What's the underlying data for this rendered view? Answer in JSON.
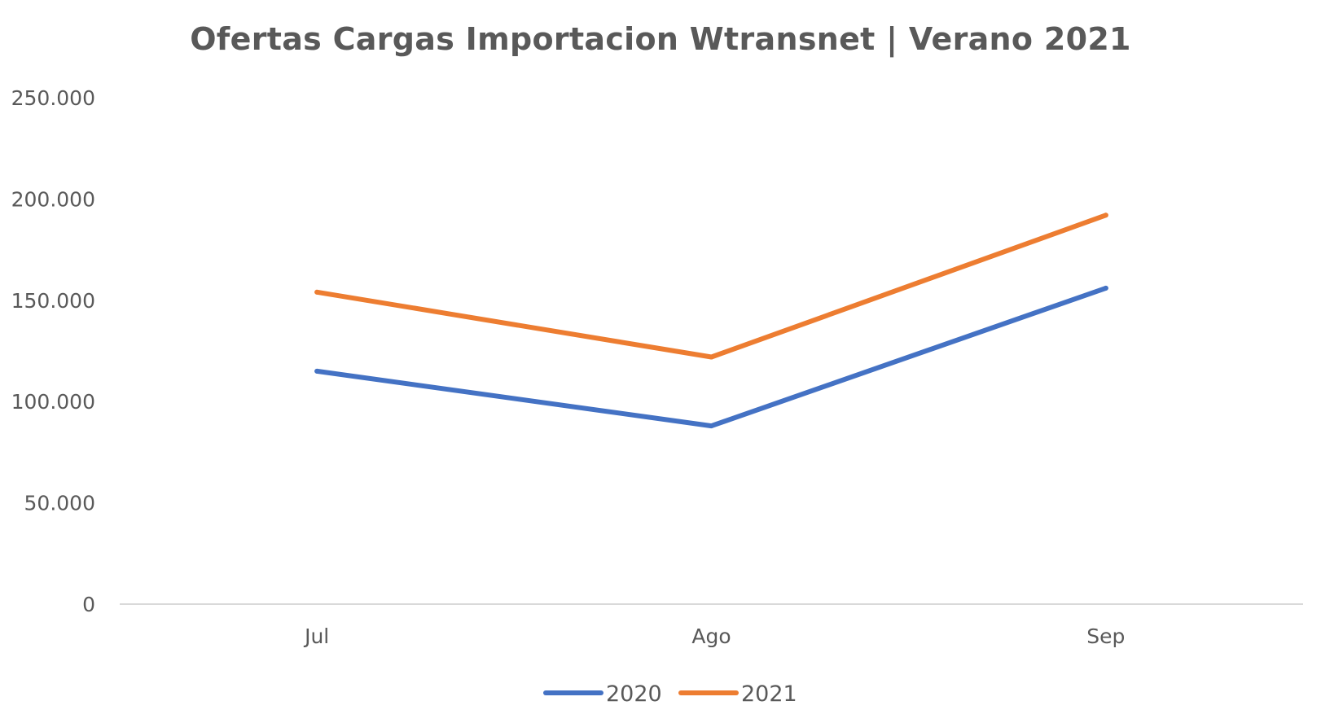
{
  "chart_data": {
    "type": "line",
    "title": "Ofertas Cargas Importacion Wtransnet | Verano 2021",
    "xlabel": "",
    "ylabel": "",
    "categories": [
      "Jul",
      "Ago",
      "Sep"
    ],
    "ylim": [
      0,
      250000
    ],
    "yticks": [
      0,
      50000,
      100000,
      150000,
      200000,
      250000
    ],
    "ytick_labels": [
      "0",
      "50.000",
      "100.000",
      "150.000",
      "200.000",
      "250.000"
    ],
    "grid": false,
    "legend_position": "bottom",
    "series": [
      {
        "name": "2020",
        "color": "#4472C4",
        "values": [
          115000,
          88000,
          156000
        ]
      },
      {
        "name": "2021",
        "color": "#ED7D31",
        "values": [
          154000,
          122000,
          192000
        ]
      }
    ]
  }
}
